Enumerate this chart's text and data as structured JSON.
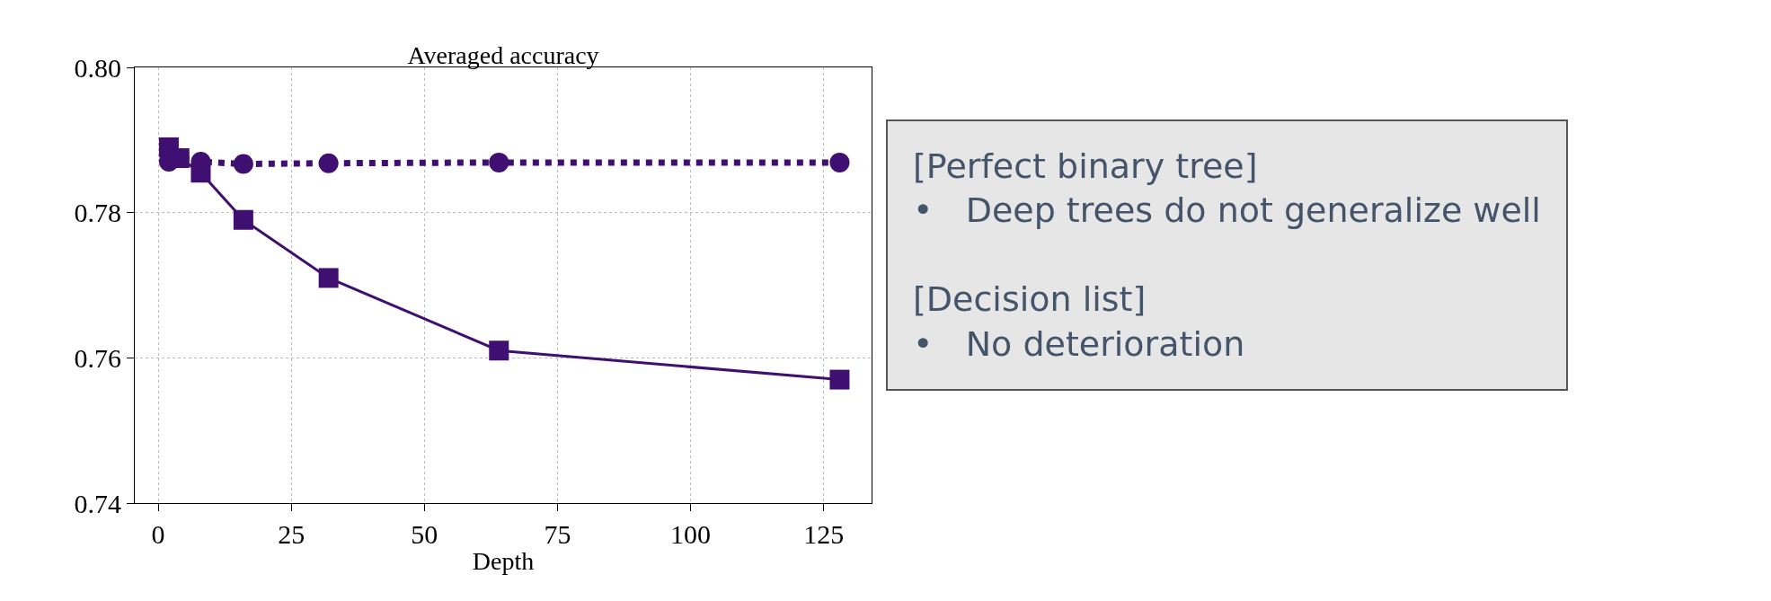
{
  "chart_data": {
    "type": "line",
    "title": "Averaged accuracy",
    "xlabel": "Depth",
    "x": [
      2,
      4,
      8,
      16,
      32,
      64,
      128
    ],
    "series": [
      {
        "color": "#3f0f72",
        "marker": "square",
        "line_style": "solid",
        "values": [
          0.789,
          0.7875,
          0.7855,
          0.779,
          0.771,
          0.761,
          0.757
        ]
      },
      {
        "color": "#3f0f72",
        "marker": "circle",
        "line_style": "dotted",
        "values": [
          0.787,
          0.7875,
          0.787,
          0.7867,
          0.7868,
          0.7869,
          0.7869
        ]
      }
    ],
    "xlim": [
      -4.4,
      134.0
    ],
    "xticks": [
      0,
      25,
      50,
      75,
      100,
      125
    ],
    "ylim": [
      0.74,
      0.8
    ],
    "yticks": [
      {
        "value": 0.74,
        "label": "0.74"
      },
      {
        "value": 0.76,
        "label": "0.76"
      },
      {
        "value": 0.78,
        "label": "0.78"
      },
      {
        "value": 0.8,
        "label": "0.80"
      }
    ],
    "grid": true,
    "legend": false,
    "annotations": [
      "[Perfect binary tree]\n•   Deep trees do not generalize well\n\n[Decision list]\n•   No deterioration"
    ]
  }
}
